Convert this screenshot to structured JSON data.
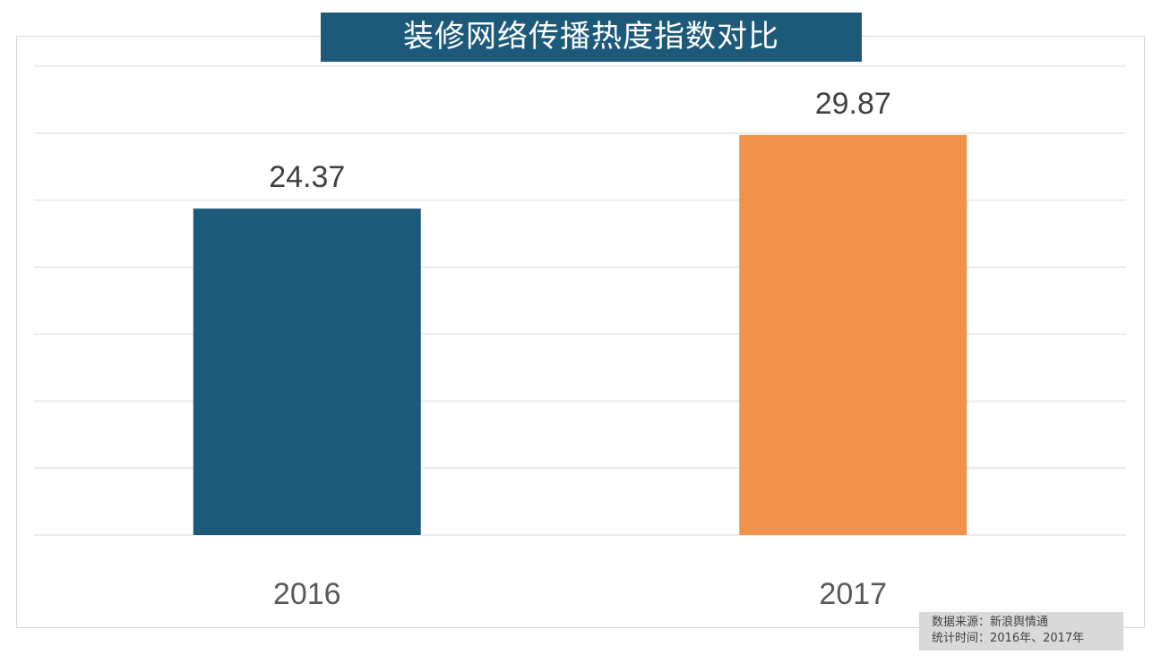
{
  "chart_data": {
    "type": "bar",
    "title": "装修网络传播热度指数对比",
    "categories": [
      "2016",
      "2017"
    ],
    "values": [
      24.37,
      29.87
    ],
    "colors": [
      "#1d5a7a",
      "#f0924b"
    ],
    "ylim": [
      0,
      35
    ],
    "ytick_step": 5,
    "grid": true,
    "ytick_labels_shown": false,
    "data_labels": [
      "24.37",
      "29.87"
    ]
  },
  "source": {
    "line1": "数据来源：新浪舆情通",
    "line2": "统计时间：2016年、2017年"
  }
}
